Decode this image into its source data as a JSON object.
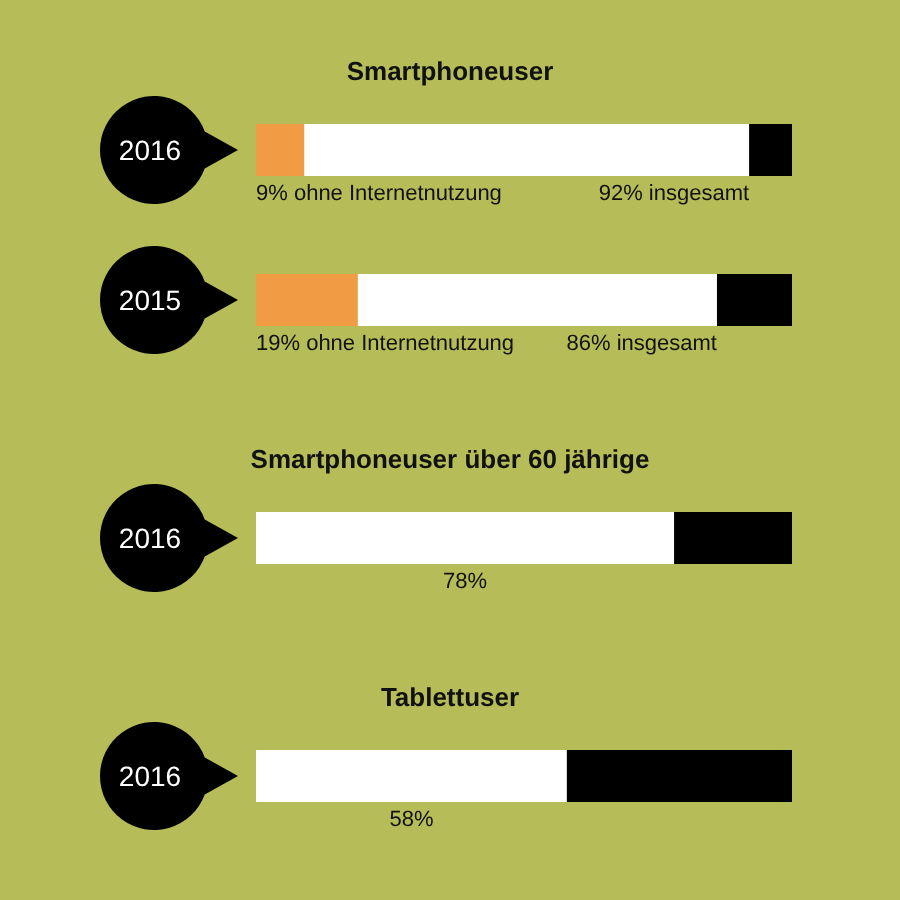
{
  "chart_data": [
    {
      "type": "bar",
      "orientation": "horizontal",
      "stacked": true,
      "title": "Smartphoneuser",
      "categories": [
        "2016",
        "2015"
      ],
      "xlim": [
        0,
        100
      ],
      "tick_labels": "y",
      "series": [
        {
          "color": "#f29b45",
          "values": [
            9,
            19
          ],
          "value_labels": [
            "9% ohne Internetnutzung",
            "19% ohne Internetnutzung"
          ]
        },
        {
          "color": "#ffffff",
          "values": [
            83,
            67
          ]
        },
        {
          "color": "#000000",
          "values": [
            8,
            14
          ]
        }
      ],
      "annotations": [
        {
          "text": "92% insgesamt",
          "x": 92,
          "y": "2016"
        },
        {
          "text": "86% insgesamt",
          "x": 86,
          "y": "2015"
        }
      ]
    },
    {
      "type": "bar",
      "orientation": "horizontal",
      "stacked": true,
      "title": "Smartphoneuser über 60 jährige",
      "categories": [
        "2016"
      ],
      "xlim": [
        0,
        100
      ],
      "tick_labels": "y",
      "series": [
        {
          "color": "#ffffff",
          "values": [
            78
          ],
          "value_labels": [
            "78%"
          ]
        },
        {
          "color": "#000000",
          "values": [
            22
          ]
        }
      ]
    },
    {
      "type": "bar",
      "orientation": "horizontal",
      "stacked": true,
      "title": "Tablettuser",
      "categories": [
        "2016"
      ],
      "xlim": [
        0,
        100
      ],
      "tick_labels": "y",
      "series": [
        {
          "color": "#ffffff",
          "values": [
            58
          ],
          "value_labels": [
            "58%"
          ]
        },
        {
          "color": "#000000",
          "values": [
            42
          ]
        }
      ]
    }
  ]
}
